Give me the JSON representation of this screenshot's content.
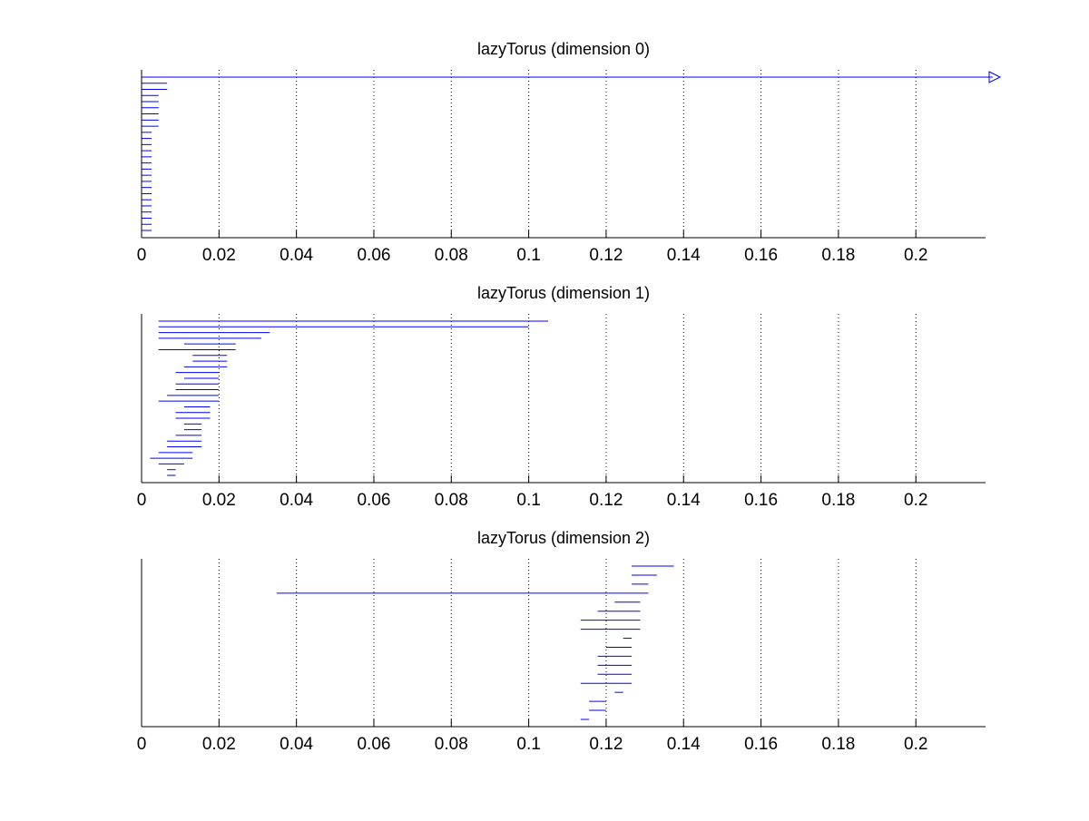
{
  "colors": {
    "bars": "#0000ff",
    "axes": "#000000",
    "grid": "#000000",
    "background": "#ffffff"
  },
  "chart_data": [
    {
      "type": "barcode",
      "title": "lazyTorus (dimension 0)",
      "xlim": [
        0,
        0.218
      ],
      "xticks": [
        "0",
        "0.02",
        "0.04",
        "0.06",
        "0.08",
        "0.1",
        "0.12",
        "0.14",
        "0.16",
        "0.18",
        "0.2"
      ],
      "xtick_values": [
        0,
        0.02,
        0.04,
        0.06,
        0.08,
        0.1,
        0.12,
        0.14,
        0.16,
        0.18,
        0.2
      ],
      "grid": "vertical dotted",
      "infinite_marker": "open triangle",
      "intervals": [
        {
          "start": 0,
          "end": null
        },
        {
          "start": 0,
          "end": 0.0066
        },
        {
          "start": 0,
          "end": 0.0066
        },
        {
          "start": 0,
          "end": 0.0044
        },
        {
          "start": 0,
          "end": 0.0044
        },
        {
          "start": 0,
          "end": 0.0044
        },
        {
          "start": 0,
          "end": 0.0044
        },
        {
          "start": 0,
          "end": 0.0044
        },
        {
          "start": 0,
          "end": 0.0044
        },
        {
          "start": 0,
          "end": 0.0026
        },
        {
          "start": 0,
          "end": 0.0026
        },
        {
          "start": 0,
          "end": 0.0026
        },
        {
          "start": 0,
          "end": 0.0026
        },
        {
          "start": 0,
          "end": 0.0026
        },
        {
          "start": 0,
          "end": 0.0026
        },
        {
          "start": 0,
          "end": 0.0026
        },
        {
          "start": 0,
          "end": 0.0026
        },
        {
          "start": 0,
          "end": 0.0026
        },
        {
          "start": 0,
          "end": 0.0026
        },
        {
          "start": 0,
          "end": 0.0026
        },
        {
          "start": 0,
          "end": 0.0026
        },
        {
          "start": 0,
          "end": 0.0026
        },
        {
          "start": 0,
          "end": 0.0026
        },
        {
          "start": 0,
          "end": 0.0026
        },
        {
          "start": 0,
          "end": 0.0026
        },
        {
          "start": 0,
          "end": 0.0026
        }
      ]
    },
    {
      "type": "barcode",
      "title": "lazyTorus (dimension 1)",
      "xlim": [
        0,
        0.218
      ],
      "xticks": [
        "0",
        "0.02",
        "0.04",
        "0.06",
        "0.08",
        "0.1",
        "0.12",
        "0.14",
        "0.16",
        "0.18",
        "0.2"
      ],
      "xtick_values": [
        0,
        0.02,
        0.04,
        0.06,
        0.08,
        0.1,
        0.12,
        0.14,
        0.16,
        0.18,
        0.2
      ],
      "grid": "vertical dotted",
      "intervals": [
        {
          "start": 0.0044,
          "end": 0.105
        },
        {
          "start": 0.0044,
          "end": 0.1
        },
        {
          "start": 0.0044,
          "end": 0.0331
        },
        {
          "start": 0.0044,
          "end": 0.0309
        },
        {
          "start": 0.011,
          "end": 0.0243
        },
        {
          "start": 0.0044,
          "end": 0.0243
        },
        {
          "start": 0.0132,
          "end": 0.0221
        },
        {
          "start": 0.0132,
          "end": 0.0221
        },
        {
          "start": 0.011,
          "end": 0.0221
        },
        {
          "start": 0.0088,
          "end": 0.0199
        },
        {
          "start": 0.011,
          "end": 0.0199
        },
        {
          "start": 0.0088,
          "end": 0.0199
        },
        {
          "start": 0.0088,
          "end": 0.0199
        },
        {
          "start": 0.0066,
          "end": 0.0199
        },
        {
          "start": 0.0044,
          "end": 0.0199
        },
        {
          "start": 0.011,
          "end": 0.0177
        },
        {
          "start": 0.0088,
          "end": 0.0177
        },
        {
          "start": 0.0088,
          "end": 0.0177
        },
        {
          "start": 0.011,
          "end": 0.0155
        },
        {
          "start": 0.011,
          "end": 0.0155
        },
        {
          "start": 0.0088,
          "end": 0.0155
        },
        {
          "start": 0.0066,
          "end": 0.0155
        },
        {
          "start": 0.0066,
          "end": 0.0155
        },
        {
          "start": 0.0044,
          "end": 0.0132
        },
        {
          "start": 0.0022,
          "end": 0.0132
        },
        {
          "start": 0.0044,
          "end": 0.011
        },
        {
          "start": 0.0066,
          "end": 0.0088
        },
        {
          "start": 0.0066,
          "end": 0.0088
        }
      ]
    },
    {
      "type": "barcode",
      "title": "lazyTorus (dimension 2)",
      "xlim": [
        0,
        0.218
      ],
      "xticks": [
        "0",
        "0.02",
        "0.04",
        "0.06",
        "0.08",
        "0.1",
        "0.12",
        "0.14",
        "0.16",
        "0.18",
        "0.2"
      ],
      "xtick_values": [
        0,
        0.02,
        0.04,
        0.06,
        0.08,
        0.1,
        0.12,
        0.14,
        0.16,
        0.18,
        0.2
      ],
      "grid": "vertical dotted",
      "intervals": [
        {
          "start": 0.1266,
          "end": 0.1375
        },
        {
          "start": 0.1266,
          "end": 0.1331
        },
        {
          "start": 0.1266,
          "end": 0.1309
        },
        {
          "start": 0.0349,
          "end": 0.1309
        },
        {
          "start": 0.1222,
          "end": 0.1288
        },
        {
          "start": 0.1178,
          "end": 0.1288
        },
        {
          "start": 0.1134,
          "end": 0.1288
        },
        {
          "start": 0.1134,
          "end": 0.1288
        },
        {
          "start": 0.1244,
          "end": 0.1266
        },
        {
          "start": 0.12,
          "end": 0.1266
        },
        {
          "start": 0.1178,
          "end": 0.1266
        },
        {
          "start": 0.1178,
          "end": 0.1266
        },
        {
          "start": 0.1178,
          "end": 0.1266
        },
        {
          "start": 0.1134,
          "end": 0.1266
        },
        {
          "start": 0.1222,
          "end": 0.1244
        },
        {
          "start": 0.1156,
          "end": 0.12
        },
        {
          "start": 0.1156,
          "end": 0.12
        },
        {
          "start": 0.1134,
          "end": 0.1156
        }
      ]
    }
  ]
}
